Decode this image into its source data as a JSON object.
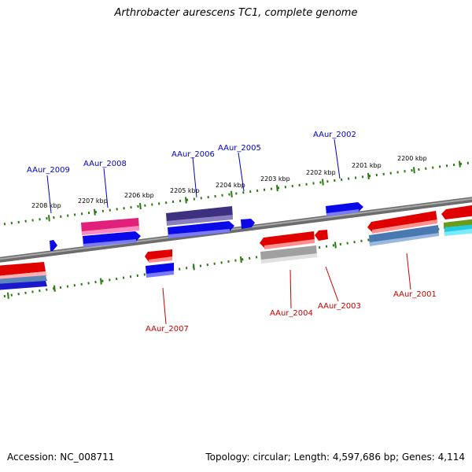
{
  "title": "Arthrobacter aurescens TC1, complete genome",
  "footer": {
    "accession": "Accession: NC_008711",
    "topology": "Topology: circular; Length: 4,597,686 bp; Genes: 4,114"
  },
  "scale_labels": [
    "2208 kbp",
    "2207 kbp",
    "2206 kbp",
    "2205 kbp",
    "2204 kbp",
    "2203 kbp",
    "2202 kbp",
    "2201 kbp",
    "2200 kbp"
  ],
  "genes_top": [
    "AAur_2009",
    "AAur_2008",
    "AAur_2006",
    "AAur_2005",
    "AAur_2002"
  ],
  "genes_bottom": [
    "AAur_2007",
    "AAur_2004",
    "AAur_2003",
    "AAur_2001"
  ],
  "colors": {
    "forward_label": "#0000cc",
    "reverse_label": "#cc0000",
    "tick": "#2a7a12",
    "backbone": "#808080"
  }
}
